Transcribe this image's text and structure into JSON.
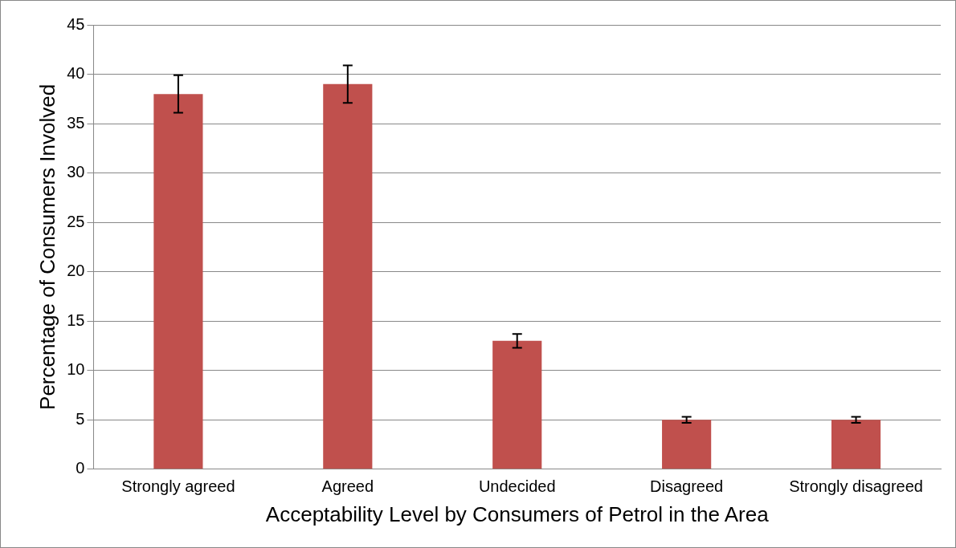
{
  "chart_data": {
    "type": "bar",
    "xlabel": "Acceptability Level by Consumers of Petrol in the Area",
    "ylabel": "Percentage of Consumers Involved",
    "categories": [
      "Strongly agreed",
      "Agreed",
      "Undecided",
      "Disagreed",
      "Strongly disagreed"
    ],
    "values": [
      38,
      39,
      13,
      5,
      5
    ],
    "errors": [
      1.9,
      1.9,
      0.7,
      0.3,
      0.3
    ],
    "color": "#c0504d",
    "ylim": [
      0,
      45
    ],
    "yticks": [
      0,
      5,
      10,
      15,
      20,
      25,
      30,
      35,
      40,
      45
    ],
    "grid": "y",
    "legend": false
  }
}
